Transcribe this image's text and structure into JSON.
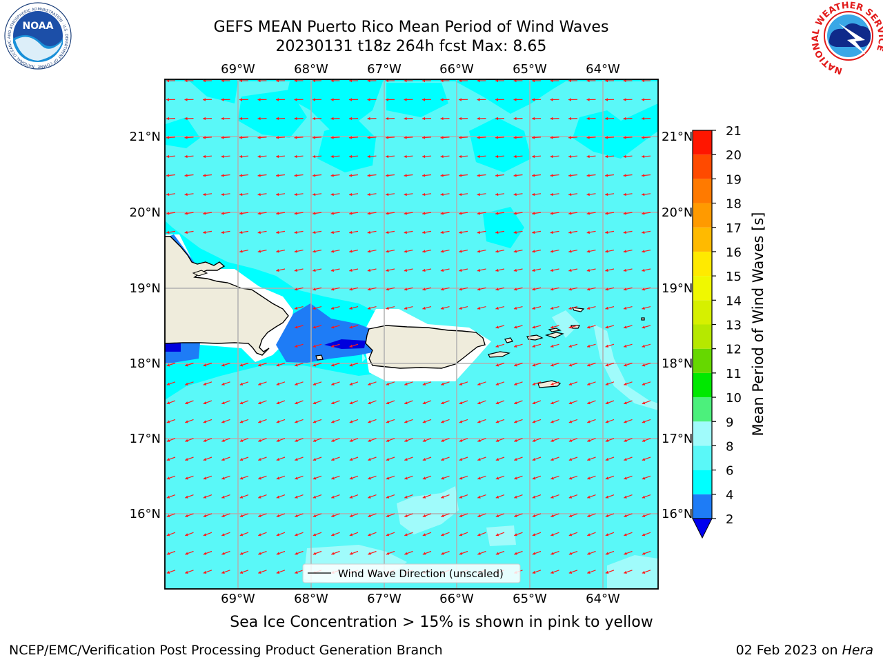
{
  "header": {
    "title_line1": "GEFS MEAN Puerto Rico Mean Period of Wind Waves",
    "title_line2": "20230131 t18z 264h fcst   Max: 8.65"
  },
  "logos": {
    "noaa_text": "NOAA",
    "noaa_ring_text": "NATIONAL OCEANIC AND ATMOSPHERIC ADMINISTRATION · U.S. DEPARTMENT OF COMMERCE",
    "nws_ring_text": "NATIONAL WEATHER SERVICE"
  },
  "map": {
    "lon_labels": [
      "69°W",
      "68°W",
      "67°W",
      "66°W",
      "65°W",
      "64°W"
    ],
    "lon_values": [
      -69,
      -68,
      -67,
      -66,
      -65,
      -64
    ],
    "lat_labels": [
      "21°N",
      "20°N",
      "19°N",
      "18°N",
      "17°N",
      "16°N"
    ],
    "lat_values": [
      21,
      20,
      19,
      18,
      17,
      16
    ],
    "lon_range": [
      -70,
      -63.25
    ],
    "lat_range": [
      15.0,
      21.75
    ],
    "legend_label": "Wind Wave Direction (unscaled)",
    "colors": {
      "land": "#efecdc",
      "band_2_4": "#1e7cf6",
      "band_below_2": "#0000dd",
      "band_4_6": "#00ffff",
      "band_6_8": "#5af8f8",
      "band_8_9": "#a0fbfb",
      "arrow": "#ff1a1a",
      "grid": "#b0b0b0"
    }
  },
  "colorbar": {
    "label": "Mean Period of Wind Waves [s]",
    "ticks": [
      "2",
      "4",
      "6",
      "8",
      "9",
      "10",
      "11",
      "12",
      "13",
      "14",
      "15",
      "16",
      "17",
      "18",
      "19",
      "20",
      "21"
    ],
    "bands": [
      {
        "from": 2,
        "to": 4,
        "color": "#1e7cf6"
      },
      {
        "from": 4,
        "to": 6,
        "color": "#00ffff"
      },
      {
        "from": 6,
        "to": 8,
        "color": "#5af8f8"
      },
      {
        "from": 8,
        "to": 9,
        "color": "#a0fbfb"
      },
      {
        "from": 9,
        "to": 10,
        "color": "#4cf07c"
      },
      {
        "from": 10,
        "to": 11,
        "color": "#00e800"
      },
      {
        "from": 11,
        "to": 12,
        "color": "#66d800"
      },
      {
        "from": 12,
        "to": 13,
        "color": "#b6e800"
      },
      {
        "from": 13,
        "to": 14,
        "color": "#d6f000"
      },
      {
        "from": 14,
        "to": 15,
        "color": "#f0f800"
      },
      {
        "from": 15,
        "to": 16,
        "color": "#ffea00"
      },
      {
        "from": 16,
        "to": 17,
        "color": "#ffba00"
      },
      {
        "from": 17,
        "to": 18,
        "color": "#ff9a00"
      },
      {
        "from": 18,
        "to": 19,
        "color": "#ff7a00"
      },
      {
        "from": 19,
        "to": 20,
        "color": "#ff4a00"
      },
      {
        "from": 20,
        "to": 21,
        "color": "#ff1600"
      }
    ],
    "under_color": "#0000ee"
  },
  "notes": {
    "sea_ice": "Sea Ice Concentration > 15% is shown in pink to yellow",
    "footer_left": "NCEP/EMC/Verification Post Processing Product Generation Branch",
    "footer_right_date": "02 Feb 2023 on ",
    "footer_right_host": "Hera"
  }
}
